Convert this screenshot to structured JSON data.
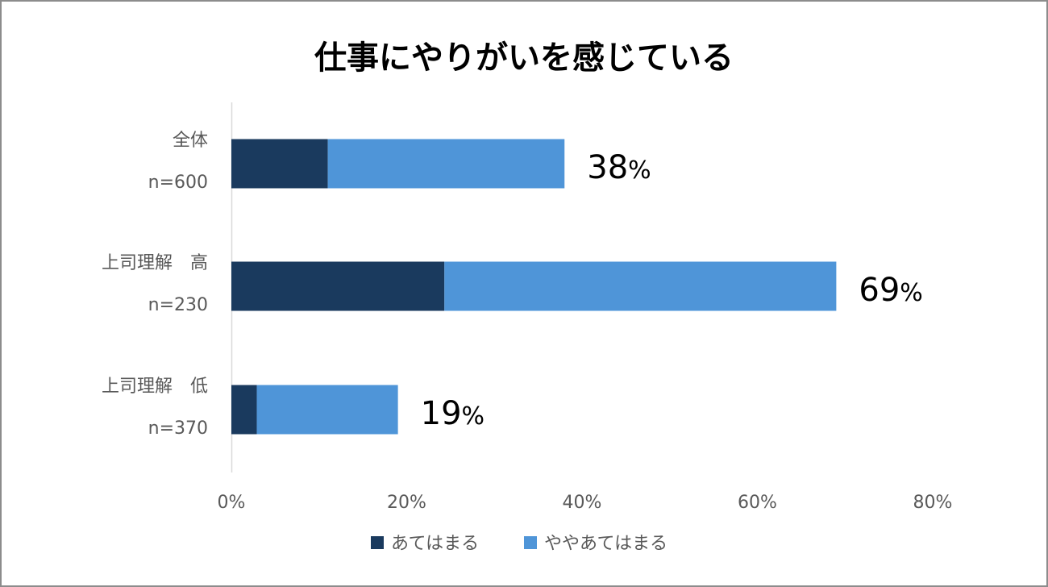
{
  "chart_data": {
    "type": "bar",
    "orientation": "horizontal",
    "stacked": true,
    "title": "仕事にやりがいを感じている",
    "categories": [
      {
        "line1": "全体",
        "line2": "n=600"
      },
      {
        "line1": "上司理解　高",
        "line2": "n=230"
      },
      {
        "line1": "上司理解　低",
        "line2": "n=370"
      }
    ],
    "series": [
      {
        "name": "あてはまる",
        "color": "#1a3a5e",
        "values": [
          11,
          24.3,
          2.9
        ]
      },
      {
        "name": "ややあてはまる",
        "color": "#4f95d8",
        "values": [
          27,
          44.7,
          16.1
        ]
      }
    ],
    "totals_labels": [
      {
        "num": "38",
        "unit": "%"
      },
      {
        "num": "69",
        "unit": "%"
      },
      {
        "num": "19",
        "unit": "%"
      }
    ],
    "xlim": [
      0,
      80
    ],
    "xticks": [
      "0%",
      "20%",
      "40%",
      "60%",
      "80%"
    ],
    "grid": false,
    "legend_position": "bottom"
  }
}
